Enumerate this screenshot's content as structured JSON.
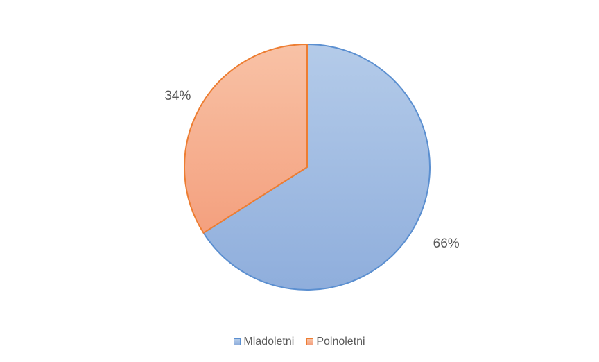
{
  "chart_data": {
    "type": "pie",
    "categories": [
      "Mladoletni",
      "Polnoletni"
    ],
    "values": [
      66,
      34
    ],
    "data_labels": [
      "66%",
      "34%"
    ],
    "colors": {
      "Mladoletni": {
        "fill_light": "#b4cbe9",
        "fill_dark": "#8faedc",
        "stroke": "#5b8fd0"
      },
      "Polnoletni": {
        "fill_light": "#f8c2a6",
        "fill_dark": "#f4a07e",
        "stroke": "#ed7d31"
      }
    },
    "legend_position": "bottom",
    "title": ""
  }
}
